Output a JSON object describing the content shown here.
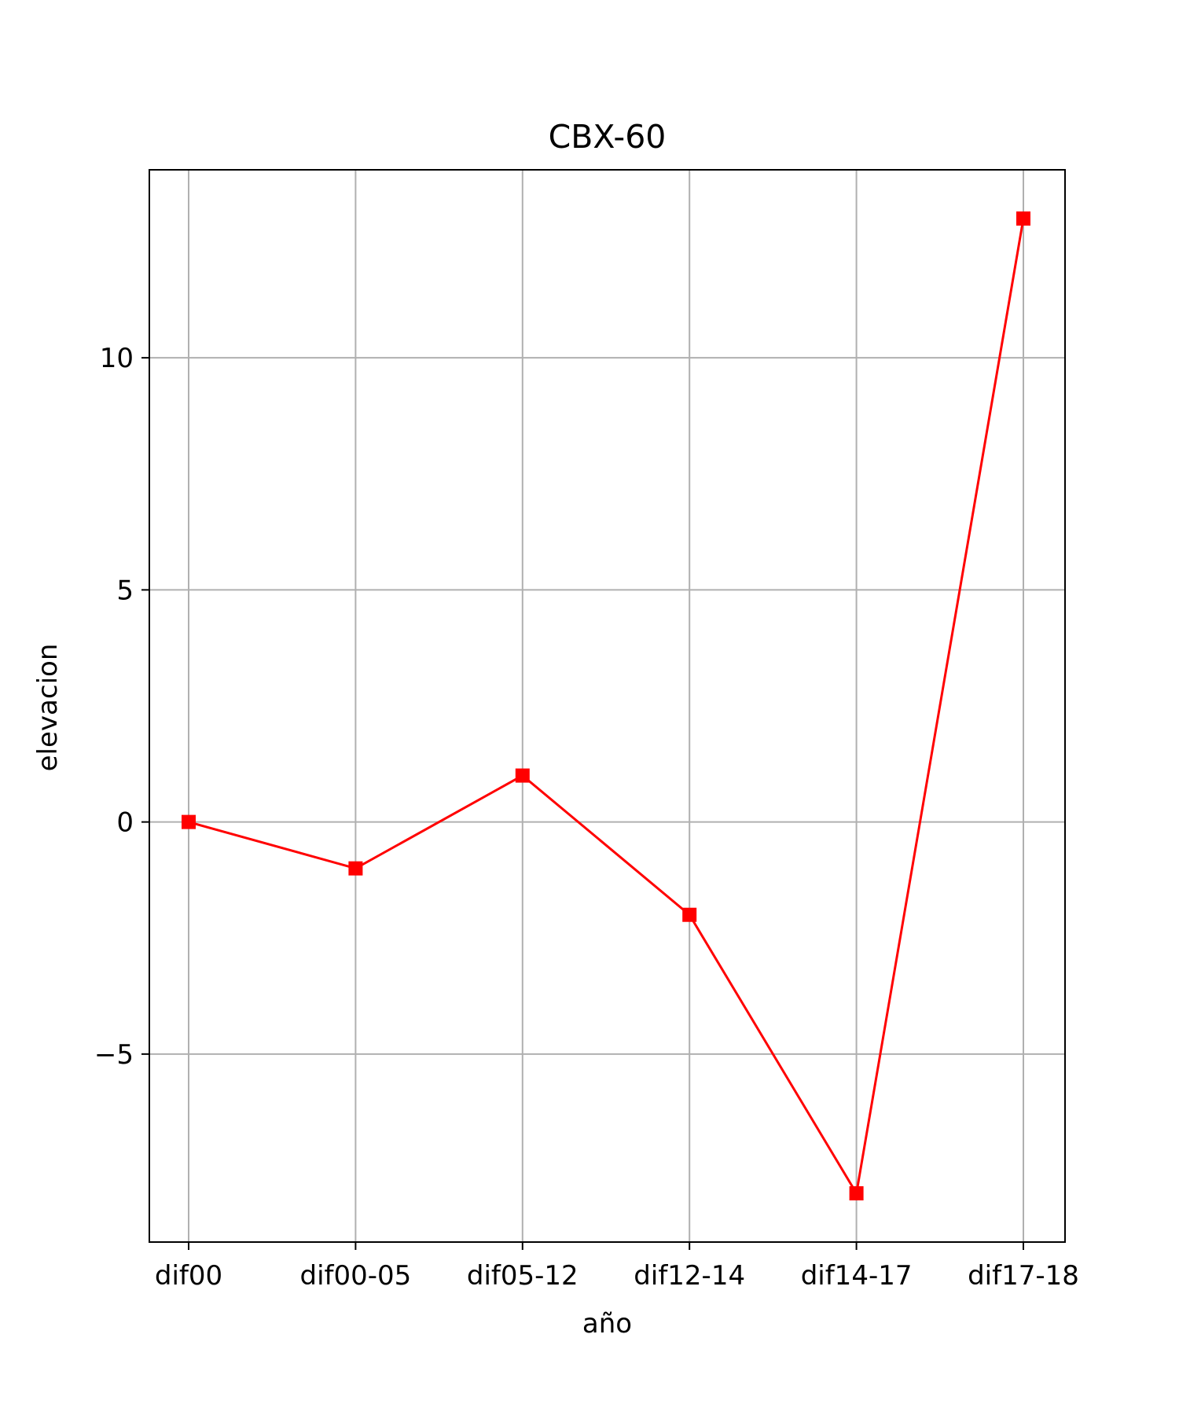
{
  "chart_data": {
    "type": "line",
    "title": "CBX-60",
    "xlabel": "año",
    "ylabel": "elevacion",
    "categories": [
      "dif00",
      "dif00-05",
      "dif05-12",
      "dif12-14",
      "dif14-17",
      "dif17-18"
    ],
    "series": [
      {
        "values": [
          0,
          -1,
          1,
          -2,
          -8,
          13
        ],
        "color": "#ff0000",
        "marker": "square"
      }
    ],
    "yticks": [
      -5,
      0,
      5,
      10
    ],
    "ytick_labels": [
      "−5",
      "0",
      "5",
      "10"
    ],
    "ylim": [
      -9.05,
      14.05
    ],
    "grid": true
  }
}
